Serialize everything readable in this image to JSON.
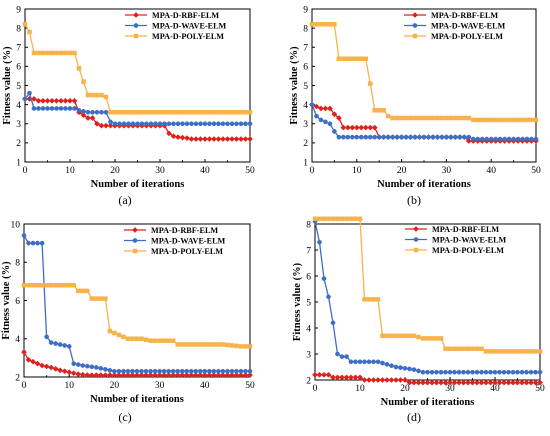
{
  "figure": {
    "series_styles": [
      {
        "name": "MPA-D-RBF-ELM",
        "color": "#e0201b",
        "marker": "diamond"
      },
      {
        "name": "MPA-D-WAVE-ELM",
        "color": "#3d6fc4",
        "marker": "circle"
      },
      {
        "name": "MPA-D-POLY-ELM",
        "color": "#f8b24a",
        "marker": "square"
      }
    ]
  },
  "chart_data": [
    {
      "panel": "(a)",
      "type": "line",
      "xlabel": "Number of iterations",
      "ylabel": "Fitness value (%)",
      "xlim": [
        0,
        50
      ],
      "ylim": [
        1,
        9
      ],
      "xticks": [
        0,
        10,
        20,
        30,
        40,
        50
      ],
      "yticks": [
        1,
        2,
        3,
        4,
        5,
        6,
        7,
        8,
        9
      ],
      "legend_position": "top-right",
      "series": [
        {
          "name": "MPA-D-RBF-ELM",
          "color": "#e0201b",
          "marker": "diamond",
          "points": [
            [
              0,
              4.3
            ],
            [
              1,
              4.3
            ],
            [
              2,
              4.3
            ],
            [
              3,
              4.2
            ],
            [
              11,
              4.2
            ],
            [
              12,
              3.6
            ],
            [
              14,
              3.3
            ],
            [
              15,
              3.3
            ],
            [
              16,
              3.0
            ],
            [
              17,
              2.9
            ],
            [
              31,
              2.9
            ],
            [
              32,
              2.5
            ],
            [
              33,
              2.35
            ],
            [
              34,
              2.3
            ],
            [
              36,
              2.25
            ],
            [
              37,
              2.2
            ],
            [
              50,
              2.2
            ]
          ]
        },
        {
          "name": "MPA-D-WAVE-ELM",
          "color": "#3d6fc4",
          "marker": "circle",
          "points": [
            [
              0,
              4.3
            ],
            [
              1,
              4.6
            ],
            [
              2,
              3.8
            ],
            [
              11,
              3.8
            ],
            [
              12,
              3.7
            ],
            [
              14,
              3.6
            ],
            [
              18,
              3.6
            ],
            [
              19,
              3.1
            ],
            [
              20,
              3.0
            ],
            [
              50,
              3.0
            ]
          ]
        },
        {
          "name": "MPA-D-POLY-ELM",
          "color": "#f8b24a",
          "marker": "square",
          "points": [
            [
              0,
              8.2
            ],
            [
              1,
              7.8
            ],
            [
              2,
              6.7
            ],
            [
              11,
              6.7
            ],
            [
              12,
              5.9
            ],
            [
              14,
              4.5
            ],
            [
              17,
              4.5
            ],
            [
              18,
              4.4
            ],
            [
              19,
              3.6
            ],
            [
              50,
              3.6
            ]
          ]
        }
      ]
    },
    {
      "panel": "(b)",
      "type": "line",
      "xlabel": "Number of iterations",
      "ylabel": "Fitness value (%)",
      "xlim": [
        0,
        50
      ],
      "ylim": [
        1,
        9
      ],
      "xticks": [
        0,
        10,
        20,
        30,
        40,
        50
      ],
      "yticks": [
        1,
        2,
        3,
        4,
        5,
        6,
        7,
        8,
        9
      ],
      "legend_position": "top-right",
      "series": [
        {
          "name": "MPA-D-RBF-ELM",
          "color": "#e0201b",
          "marker": "diamond",
          "points": [
            [
              0,
              4.0
            ],
            [
              1,
              3.9
            ],
            [
              2,
              3.8
            ],
            [
              4,
              3.8
            ],
            [
              5,
              3.5
            ],
            [
              6,
              3.3
            ],
            [
              7,
              2.8
            ],
            [
              14,
              2.8
            ],
            [
              15,
              2.3
            ],
            [
              34,
              2.3
            ],
            [
              35,
              2.1
            ],
            [
              50,
              2.1
            ]
          ]
        },
        {
          "name": "MPA-D-WAVE-ELM",
          "color": "#3d6fc4",
          "marker": "circle",
          "points": [
            [
              0,
              4.0
            ],
            [
              1,
              3.4
            ],
            [
              2,
              3.2
            ],
            [
              3,
              3.1
            ],
            [
              4,
              3.0
            ],
            [
              5,
              2.6
            ],
            [
              6,
              2.3
            ],
            [
              35,
              2.3
            ],
            [
              36,
              2.2
            ],
            [
              50,
              2.2
            ]
          ]
        },
        {
          "name": "MPA-D-POLY-ELM",
          "color": "#f8b24a",
          "marker": "square",
          "points": [
            [
              0,
              8.2
            ],
            [
              5,
              8.2
            ],
            [
              6,
              6.4
            ],
            [
              12,
              6.4
            ],
            [
              13,
              5.1
            ],
            [
              14,
              3.7
            ],
            [
              16,
              3.7
            ],
            [
              17,
              3.4
            ],
            [
              18,
              3.3
            ],
            [
              35,
              3.3
            ],
            [
              36,
              3.2
            ],
            [
              50,
              3.2
            ]
          ]
        }
      ]
    },
    {
      "panel": "(c)",
      "type": "line",
      "xlabel": "Number of iterations",
      "ylabel": "Fitness value (%)",
      "xlim": [
        0,
        50
      ],
      "ylim": [
        2,
        10
      ],
      "xticks": [
        0,
        10,
        20,
        30,
        40,
        50
      ],
      "yticks": [
        2,
        4,
        6,
        8,
        10
      ],
      "legend_position": "top-right",
      "series": [
        {
          "name": "MPA-D-RBF-ELM",
          "color": "#e0201b",
          "marker": "diamond",
          "points": [
            [
              0,
              3.3
            ],
            [
              1,
              2.9
            ],
            [
              2,
              2.8
            ],
            [
              4,
              2.6
            ],
            [
              6,
              2.5
            ],
            [
              8,
              2.35
            ],
            [
              10,
              2.25
            ],
            [
              12,
              2.15
            ],
            [
              14,
              2.1
            ],
            [
              50,
              2.1
            ]
          ]
        },
        {
          "name": "MPA-D-WAVE-ELM",
          "color": "#3d6fc4",
          "marker": "circle",
          "points": [
            [
              0,
              9.4
            ],
            [
              1,
              9.0
            ],
            [
              4,
              9.0
            ],
            [
              5,
              4.1
            ],
            [
              6,
              3.8
            ],
            [
              8,
              3.7
            ],
            [
              10,
              3.6
            ],
            [
              11,
              2.7
            ],
            [
              13,
              2.6
            ],
            [
              16,
              2.5
            ],
            [
              18,
              2.4
            ],
            [
              20,
              2.3
            ],
            [
              50,
              2.3
            ]
          ]
        },
        {
          "name": "MPA-D-POLY-ELM",
          "color": "#f8b24a",
          "marker": "square",
          "points": [
            [
              0,
              6.8
            ],
            [
              11,
              6.8
            ],
            [
              12,
              6.5
            ],
            [
              14,
              6.5
            ],
            [
              15,
              6.1
            ],
            [
              18,
              6.1
            ],
            [
              19,
              4.4
            ],
            [
              21,
              4.2
            ],
            [
              23,
              4.0
            ],
            [
              26,
              4.0
            ],
            [
              28,
              3.9
            ],
            [
              33,
              3.9
            ],
            [
              34,
              3.7
            ],
            [
              44,
              3.7
            ],
            [
              48,
              3.6
            ],
            [
              50,
              3.6
            ]
          ]
        }
      ]
    },
    {
      "panel": "(d)",
      "type": "line",
      "xlabel": "Number of iterations",
      "ylabel": "Fitness value (%)",
      "xlim": [
        0,
        50
      ],
      "ylim": [
        2,
        8
      ],
      "xticks": [
        0,
        10,
        20,
        30,
        40,
        50
      ],
      "yticks": [
        2,
        3,
        4,
        5,
        6,
        7,
        8
      ],
      "legend_position": "top-right",
      "series": [
        {
          "name": "MPA-D-RBF-ELM",
          "color": "#e0201b",
          "marker": "diamond",
          "points": [
            [
              0,
              2.2
            ],
            [
              3,
              2.2
            ],
            [
              4,
              2.1
            ],
            [
              10,
              2.1
            ],
            [
              11,
              2.0
            ],
            [
              20,
              2.0
            ],
            [
              21,
              1.9
            ],
            [
              50,
              1.9
            ]
          ]
        },
        {
          "name": "MPA-D-WAVE-ELM",
          "color": "#3d6fc4",
          "marker": "circle",
          "points": [
            [
              0,
              8.1
            ],
            [
              1,
              7.3
            ],
            [
              2,
              5.9
            ],
            [
              3,
              5.2
            ],
            [
              4,
              4.2
            ],
            [
              5,
              3.0
            ],
            [
              6,
              2.9
            ],
            [
              7,
              2.9
            ],
            [
              8,
              2.7
            ],
            [
              14,
              2.7
            ],
            [
              16,
              2.6
            ],
            [
              18,
              2.5
            ],
            [
              22,
              2.4
            ],
            [
              24,
              2.3
            ],
            [
              50,
              2.3
            ]
          ]
        },
        {
          "name": "MPA-D-POLY-ELM",
          "color": "#f8b24a",
          "marker": "square",
          "points": [
            [
              0,
              8.2
            ],
            [
              10,
              8.2
            ],
            [
              11,
              5.1
            ],
            [
              14,
              5.1
            ],
            [
              15,
              3.7
            ],
            [
              22,
              3.7
            ],
            [
              24,
              3.6
            ],
            [
              28,
              3.6
            ],
            [
              29,
              3.2
            ],
            [
              37,
              3.2
            ],
            [
              38,
              3.1
            ],
            [
              50,
              3.1
            ]
          ]
        }
      ]
    }
  ]
}
